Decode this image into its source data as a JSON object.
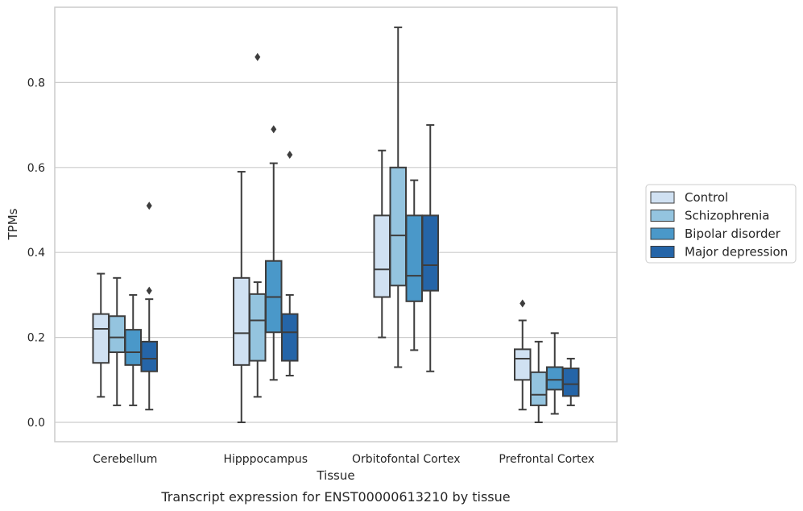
{
  "chart_data": {
    "type": "box",
    "caption": "Transcript expression for ENST00000613210 by tissue",
    "xlabel": "Tissue",
    "ylabel": "TPMs",
    "ylim": [
      -0.045,
      0.98
    ],
    "yticks": [
      0.0,
      0.2,
      0.4,
      0.6,
      0.8
    ],
    "ytick_labels": [
      "0.0",
      "0.2",
      "0.4",
      "0.6",
      "0.8"
    ],
    "grid": true,
    "legend_position": "right",
    "categories": [
      "Cerebellum",
      "Hipppocampus",
      "Orbitofontal Cortex",
      "Prefrontal Cortex"
    ],
    "series": [
      {
        "name": "Control",
        "color": "#d0e1f2",
        "boxes": [
          {
            "whisker_low": 0.06,
            "q1": 0.14,
            "median": 0.22,
            "q3": 0.255,
            "whisker_high": 0.35,
            "outliers": []
          },
          {
            "whisker_low": 0.0,
            "q1": 0.135,
            "median": 0.21,
            "q3": 0.34,
            "whisker_high": 0.59,
            "outliers": []
          },
          {
            "whisker_low": 0.2,
            "q1": 0.295,
            "median": 0.36,
            "q3": 0.487,
            "whisker_high": 0.64,
            "outliers": []
          },
          {
            "whisker_low": 0.03,
            "q1": 0.1,
            "median": 0.15,
            "q3": 0.172,
            "whisker_high": 0.24,
            "outliers": [
              0.28
            ]
          }
        ]
      },
      {
        "name": "Schizophrenia",
        "color": "#94c4df",
        "boxes": [
          {
            "whisker_low": 0.04,
            "q1": 0.165,
            "median": 0.2,
            "q3": 0.25,
            "whisker_high": 0.34,
            "outliers": []
          },
          {
            "whisker_low": 0.06,
            "q1": 0.145,
            "median": 0.24,
            "q3": 0.302,
            "whisker_high": 0.33,
            "outliers": [
              0.86
            ]
          },
          {
            "whisker_low": 0.13,
            "q1": 0.322,
            "median": 0.44,
            "q3": 0.6,
            "whisker_high": 0.93,
            "outliers": []
          },
          {
            "whisker_low": 0.0,
            "q1": 0.04,
            "median": 0.065,
            "q3": 0.118,
            "whisker_high": 0.19,
            "outliers": []
          }
        ]
      },
      {
        "name": "Bipolar disorder",
        "color": "#4a98c9",
        "boxes": [
          {
            "whisker_low": 0.04,
            "q1": 0.135,
            "median": 0.165,
            "q3": 0.218,
            "whisker_high": 0.3,
            "outliers": []
          },
          {
            "whisker_low": 0.1,
            "q1": 0.212,
            "median": 0.295,
            "q3": 0.38,
            "whisker_high": 0.61,
            "outliers": [
              0.69
            ]
          },
          {
            "whisker_low": 0.17,
            "q1": 0.285,
            "median": 0.345,
            "q3": 0.487,
            "whisker_high": 0.57,
            "outliers": []
          },
          {
            "whisker_low": 0.02,
            "q1": 0.077,
            "median": 0.1,
            "q3": 0.13,
            "whisker_high": 0.21,
            "outliers": []
          }
        ]
      },
      {
        "name": "Major depression",
        "color": "#2565a8",
        "boxes": [
          {
            "whisker_low": 0.03,
            "q1": 0.12,
            "median": 0.15,
            "q3": 0.19,
            "whisker_high": 0.29,
            "outliers": [
              0.31,
              0.51
            ]
          },
          {
            "whisker_low": 0.11,
            "q1": 0.145,
            "median": 0.212,
            "q3": 0.255,
            "whisker_high": 0.3,
            "outliers": [
              0.63
            ]
          },
          {
            "whisker_low": 0.12,
            "q1": 0.31,
            "median": 0.37,
            "q3": 0.487,
            "whisker_high": 0.7,
            "outliers": []
          },
          {
            "whisker_low": 0.04,
            "q1": 0.062,
            "median": 0.09,
            "q3": 0.127,
            "whisker_high": 0.15,
            "outliers": []
          }
        ]
      }
    ]
  }
}
